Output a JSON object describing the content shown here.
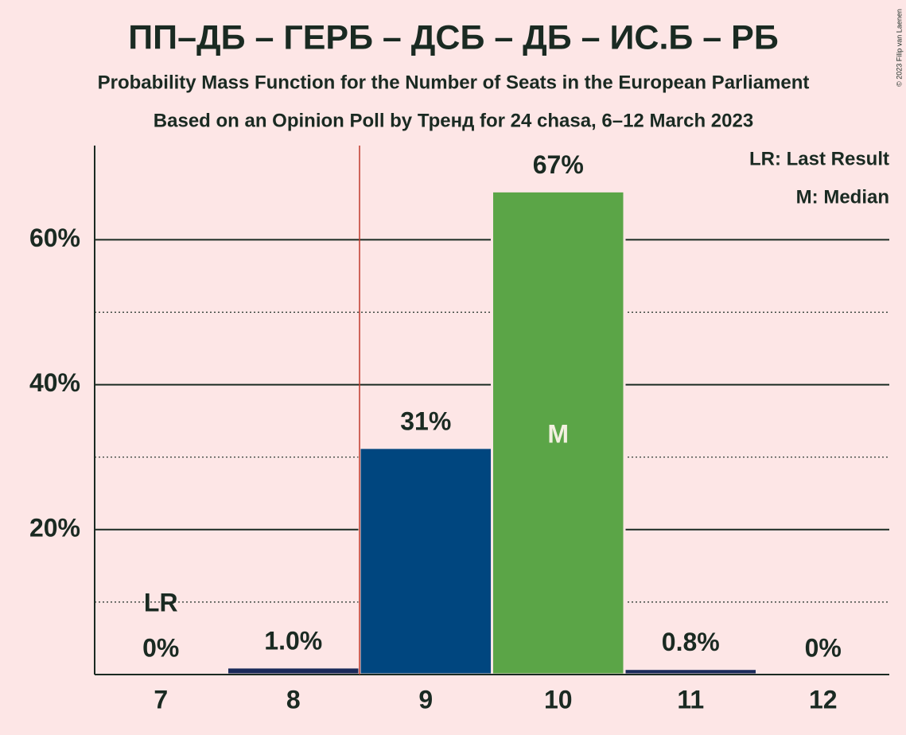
{
  "chart_data": {
    "type": "bar",
    "title": "ПП–ДБ – ГЕРБ – ДСБ – ДБ – ИС.Б – РБ",
    "subtitle": "Probability Mass Function for the Number of Seats in the European Parliament",
    "subtitle2": "Based on an Opinion Poll by Тренд for 24 chasa, 6–12 March 2023",
    "categories": [
      "7",
      "8",
      "9",
      "10",
      "11",
      "12"
    ],
    "values": [
      0,
      1.0,
      31.3,
      66.7,
      0.8,
      0
    ],
    "value_labels": [
      "0%",
      "1.0%",
      "31%",
      "67%",
      "0.8%",
      "0%"
    ],
    "colors": [
      "#1a2a5a",
      "#1a2a5a",
      "#00467f",
      "#5ba547",
      "#1a2a5a",
      "#1a2a5a"
    ],
    "ylim": [
      0,
      73
    ],
    "yticks": [
      {
        "value": 20,
        "label": "20%"
      },
      {
        "value": 40,
        "label": "40%"
      },
      {
        "value": 60,
        "label": "60%"
      }
    ],
    "minor_yticks": [
      10,
      30,
      50
    ],
    "grid": true,
    "last_result": {
      "category": "7",
      "label": "LR"
    },
    "median": {
      "category": "10",
      "label": "M"
    },
    "vline": {
      "x": 8.5,
      "color": "#c0392b"
    },
    "legend": [
      "LR: Last Result",
      "M: Median"
    ],
    "copyright": "© 2023 Filip van Laenen"
  }
}
